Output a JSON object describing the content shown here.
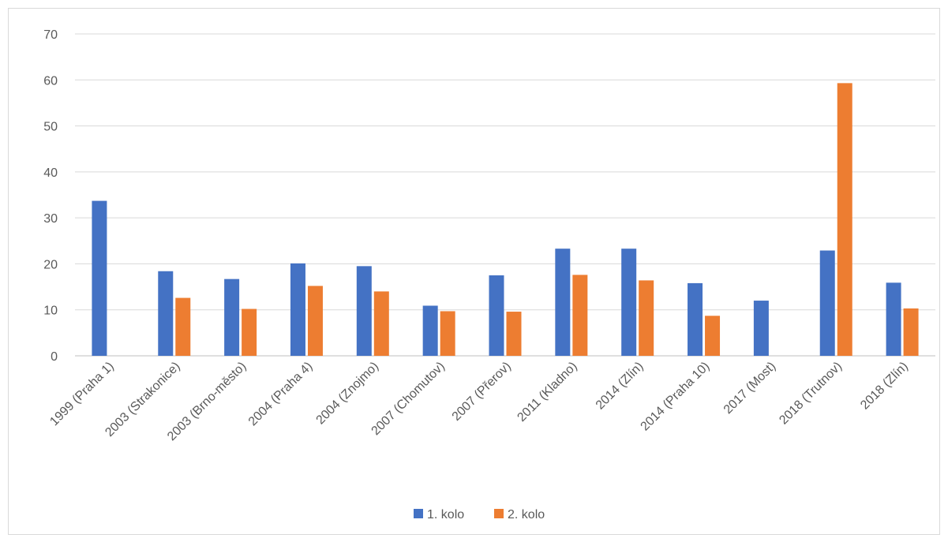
{
  "chart_data": {
    "type": "bar",
    "title": "",
    "xlabel": "",
    "ylabel": "",
    "ylim": [
      0,
      70
    ],
    "yticks": [
      0,
      10,
      20,
      30,
      40,
      50,
      60,
      70
    ],
    "grid": true,
    "legend_position": "bottom",
    "categories": [
      "1999 (Praha 1)",
      "2003 (Strakonice)",
      "2003 (Brno-město)",
      "2004 (Praha 4)",
      "2004 (Znojmo)",
      "2007 (Chomutov)",
      "2007 (Přerov)",
      "2011 (Kladno)",
      "2014 (Zlín)",
      "2014 (Praha 10)",
      "2017 (Most)",
      "2018 (Trutnov)",
      "2018 (Zlín)"
    ],
    "series": [
      {
        "name": "1. kolo",
        "color": "#4472c4",
        "values": [
          33.7,
          18.4,
          16.7,
          20.1,
          19.5,
          10.9,
          17.5,
          23.3,
          23.3,
          15.8,
          12.0,
          22.9,
          15.9
        ]
      },
      {
        "name": "2. kolo",
        "color": "#ed7d31",
        "values": [
          null,
          12.6,
          10.2,
          15.2,
          14.0,
          9.7,
          9.6,
          17.6,
          16.4,
          8.7,
          null,
          59.3,
          10.3
        ]
      }
    ]
  }
}
